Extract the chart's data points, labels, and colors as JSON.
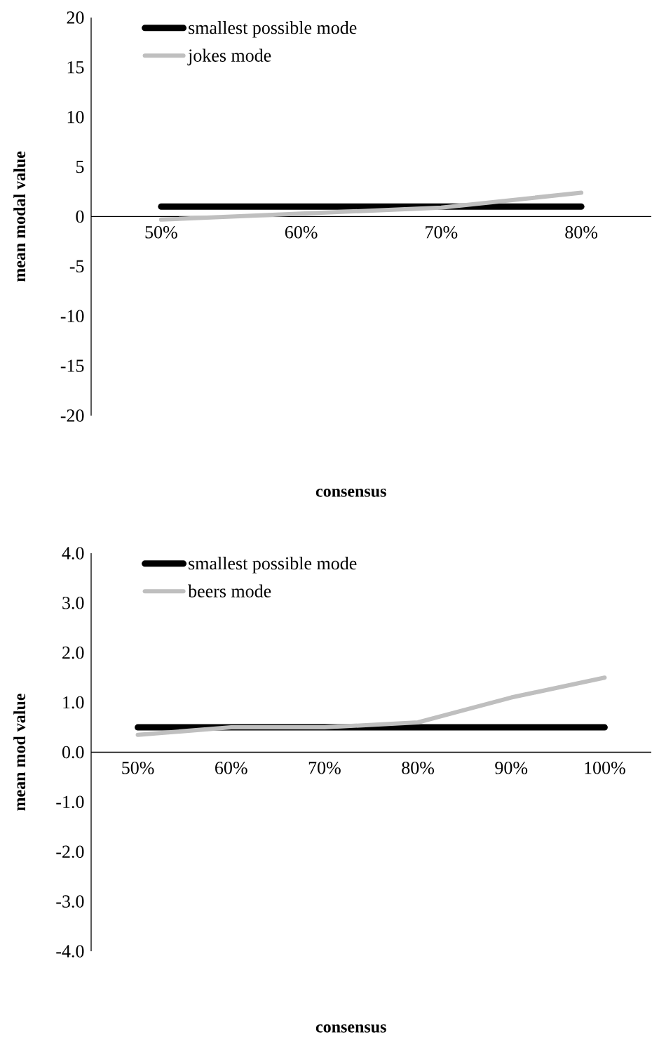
{
  "chart_data": [
    {
      "type": "line",
      "categories": [
        "50%",
        "60%",
        "70%",
        "80%"
      ],
      "series": [
        {
          "name": "smallest possible mode",
          "color": "#000000",
          "values": [
            1,
            1,
            1,
            1
          ]
        },
        {
          "name": "jokes mode",
          "color": "#bfbfbf",
          "values": [
            -0.3,
            0.3,
            0.9,
            2.4
          ]
        }
      ],
      "xlabel": "consensus",
      "ylabel": "mean modal value",
      "ylim": [
        -20,
        20
      ],
      "yticks": [
        -20,
        -15,
        -10,
        -5,
        0,
        5,
        10,
        15,
        20
      ],
      "legend": "top left",
      "grid": false,
      "marker": "none",
      "line_style": "solid"
    },
    {
      "type": "line",
      "categories": [
        "50%",
        "60%",
        "70%",
        "80%",
        "90%",
        "100%"
      ],
      "series": [
        {
          "name": "smallest possible mode",
          "color": "#000000",
          "values": [
            0.5,
            0.5,
            0.5,
            0.5,
            0.5,
            0.5
          ]
        },
        {
          "name": "beers mode",
          "color": "#bfbfbf",
          "values": [
            0.35,
            0.5,
            0.5,
            0.6,
            1.1,
            1.5
          ]
        }
      ],
      "xlabel": "consensus",
      "ylabel": "mean mod value",
      "ylim": [
        -4,
        4
      ],
      "yticks": [
        {
          "value": -4,
          "label": "-4.0"
        },
        {
          "value": -3,
          "label": "-3.0"
        },
        {
          "value": -2,
          "label": "-2.0"
        },
        {
          "value": -1,
          "label": "-1.0"
        },
        {
          "value": 0,
          "label": "0.0"
        },
        {
          "value": 1,
          "label": "1.0"
        },
        {
          "value": 2,
          "label": "2.0"
        },
        {
          "value": 3,
          "label": "3.0"
        },
        {
          "value": 4,
          "label": "4.0"
        }
      ],
      "legend": "top left",
      "grid": false,
      "marker": "none",
      "line_style": "solid"
    }
  ]
}
